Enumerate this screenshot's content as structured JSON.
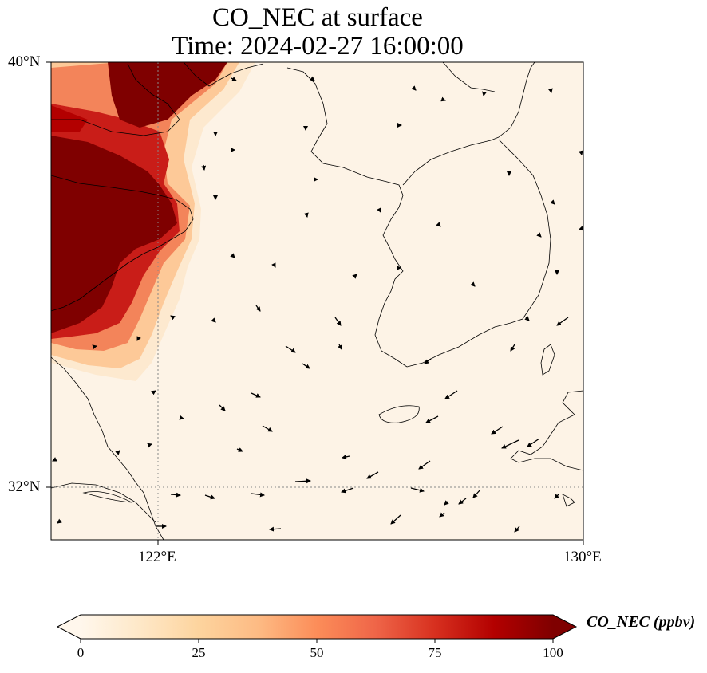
{
  "title": {
    "line1": "CO_NEC at surface",
    "line2": "Time: 2024-02-27 16:00:00"
  },
  "axes": {
    "lat_labels": [
      "40°N",
      "32°N"
    ],
    "lon_labels": [
      "122°E",
      "130°E"
    ]
  },
  "map_data": {
    "type": "heatmap",
    "variable": "CO_NEC",
    "level": "surface",
    "lon_range": [
      120,
      130
    ],
    "lat_range": [
      31,
      40
    ],
    "gridlines": {
      "lon": [
        122,
        130
      ],
      "lat": [
        32,
        40
      ]
    },
    "wind_vectors": true,
    "high_concentration_region": "northwest (eastern China coast / Shandong / Bohai)"
  },
  "colorbar": {
    "label": "CO_NEC (ppbv)",
    "ticks": [
      "0",
      "25",
      "50",
      "75",
      "100"
    ],
    "range": [
      0,
      100
    ],
    "colormap": "OrRd",
    "extend": "both",
    "colors": [
      "#fff7ec",
      "#fee8c8",
      "#fdd49e",
      "#fdbb84",
      "#fc8d59",
      "#ef6548",
      "#d7301f",
      "#b30000",
      "#7f0000"
    ]
  }
}
